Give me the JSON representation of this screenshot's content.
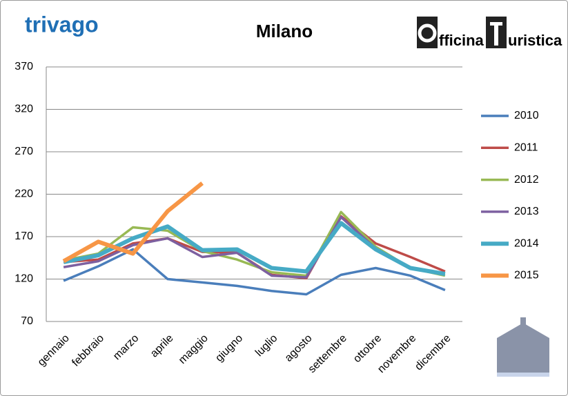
{
  "chart_data": {
    "type": "line",
    "title": "Milano",
    "logos": {
      "left": "trivago",
      "right_first": "fficina",
      "right_second": "uristica"
    },
    "categories": [
      "gennaio",
      "febbraio",
      "marzo",
      "aprile",
      "maggio",
      "giugno",
      "luglio",
      "agosto",
      "settembre",
      "ottobre",
      "novembre",
      "dicembre"
    ],
    "series": [
      {
        "name": "2010",
        "color": "#4a7ebb",
        "values": [
          118,
          135,
          155,
          120,
          116,
          112,
          106,
          102,
          125,
          133,
          124,
          107
        ]
      },
      {
        "name": "2011",
        "color": "#be4b48",
        "values": [
          140,
          143,
          162,
          168,
          152,
          151,
          125,
          121,
          194,
          162,
          146,
          129
        ]
      },
      {
        "name": "2012",
        "color": "#98b954",
        "values": [
          142,
          150,
          181,
          177,
          153,
          143,
          128,
          124,
          199,
          158,
          133,
          124
        ]
      },
      {
        "name": "2013",
        "color": "#7d60a0",
        "values": [
          134,
          141,
          160,
          168,
          146,
          151,
          124,
          122,
          193,
          156,
          133,
          127
        ]
      },
      {
        "name": "2014",
        "color": "#46aac5",
        "values": [
          140,
          148,
          168,
          182,
          154,
          155,
          133,
          129,
          186,
          155,
          133,
          126
        ]
      },
      {
        "name": "2015",
        "color": "#f79646",
        "values": [
          141,
          164,
          150,
          200,
          233,
          null,
          null,
          null,
          null,
          null,
          null,
          null
        ]
      }
    ],
    "ylim": [
      70,
      370
    ],
    "yticks": [
      70,
      120,
      170,
      220,
      270,
      320,
      370
    ],
    "grid": true,
    "legend": "right"
  }
}
